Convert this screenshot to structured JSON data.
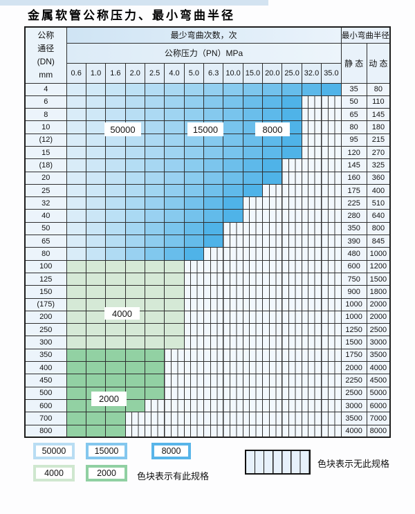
{
  "page": {
    "title": "金属软管公称压力、最小弯曲半径"
  },
  "table": {
    "header": {
      "dn_lines": [
        "公称",
        "通径",
        "(DN)",
        "mm"
      ],
      "bend_cycles": "最少弯曲次数，次",
      "pressure": "公称压力（PN）MPa",
      "min_radius": "最小弯曲半径",
      "static_label": "静 态",
      "dynamic_label": "动 态",
      "pressure_columns": [
        "0.6",
        "1.0",
        "1.6",
        "2.0",
        "2.5",
        "4.0",
        "5.0",
        "6.3",
        "10.0",
        "15.0",
        "20.0",
        "25.0",
        "32.0",
        "35.0"
      ]
    },
    "rows": [
      {
        "dn": "4",
        "colored": 14,
        "zone": "blue",
        "static": "35",
        "dynamic": "80"
      },
      {
        "dn": "6",
        "colored": 12,
        "zone": "blue",
        "static": "50",
        "dynamic": "110"
      },
      {
        "dn": "8",
        "colored": 12,
        "zone": "blue",
        "static": "65",
        "dynamic": "145"
      },
      {
        "dn": "10",
        "colored": 12,
        "zone": "blue",
        "static": "80",
        "dynamic": "180"
      },
      {
        "dn": "(12)",
        "colored": 12,
        "zone": "blue",
        "static": "95",
        "dynamic": "215"
      },
      {
        "dn": "15",
        "colored": 12,
        "zone": "blue",
        "static": "120",
        "dynamic": "270"
      },
      {
        "dn": "(18)",
        "colored": 11,
        "zone": "blue",
        "static": "145",
        "dynamic": "325"
      },
      {
        "dn": "20",
        "colored": 11,
        "zone": "blue",
        "static": "160",
        "dynamic": "360"
      },
      {
        "dn": "25",
        "colored": 10,
        "zone": "blue",
        "static": "175",
        "dynamic": "400"
      },
      {
        "dn": "32",
        "colored": 9,
        "zone": "blue",
        "static": "225",
        "dynamic": "510"
      },
      {
        "dn": "40",
        "colored": 9,
        "zone": "blue",
        "static": "280",
        "dynamic": "640"
      },
      {
        "dn": "50",
        "colored": 8,
        "zone": "blue",
        "static": "350",
        "dynamic": "800"
      },
      {
        "dn": "65",
        "colored": 8,
        "zone": "blue",
        "static": "390",
        "dynamic": "845"
      },
      {
        "dn": "80",
        "colored": 7,
        "zone": "blue",
        "static": "480",
        "dynamic": "1000"
      },
      {
        "dn": "100",
        "colored": 6,
        "zone": "green-4000",
        "static": "600",
        "dynamic": "1200"
      },
      {
        "dn": "125",
        "colored": 6,
        "zone": "green-4000",
        "static": "750",
        "dynamic": "1500"
      },
      {
        "dn": "150",
        "colored": 6,
        "zone": "green-4000",
        "static": "900",
        "dynamic": "1800"
      },
      {
        "dn": "(175)",
        "colored": 6,
        "zone": "green-4000",
        "static": "1000",
        "dynamic": "2000"
      },
      {
        "dn": "200",
        "colored": 6,
        "zone": "green-4000",
        "static": "1000",
        "dynamic": "2000"
      },
      {
        "dn": "250",
        "colored": 6,
        "zone": "green-4000",
        "static": "1250",
        "dynamic": "2500"
      },
      {
        "dn": "300",
        "colored": 6,
        "zone": "green-4000",
        "static": "1500",
        "dynamic": "3000"
      },
      {
        "dn": "350",
        "colored": 5,
        "zone": "green-2000",
        "static": "1750",
        "dynamic": "3500"
      },
      {
        "dn": "400",
        "colored": 5,
        "zone": "green-2000",
        "static": "2000",
        "dynamic": "4000"
      },
      {
        "dn": "450",
        "colored": 5,
        "zone": "green-2000",
        "static": "2250",
        "dynamic": "4500"
      },
      {
        "dn": "500",
        "colored": 5,
        "zone": "green-2000",
        "static": "2500",
        "dynamic": "5000"
      },
      {
        "dn": "600",
        "colored": 4,
        "zone": "green-2000",
        "static": "3000",
        "dynamic": "6000"
      },
      {
        "dn": "700",
        "colored": 3,
        "zone": "green-2000",
        "static": "3500",
        "dynamic": "7000"
      },
      {
        "dn": "800",
        "colored": 3,
        "zone": "green-2000",
        "static": "4000",
        "dynamic": "8000"
      }
    ]
  },
  "overlays": [
    {
      "id": "label-50000",
      "text": "50000"
    },
    {
      "id": "label-15000",
      "text": "15000"
    },
    {
      "id": "label-8000",
      "text": "8000"
    },
    {
      "id": "label-4000",
      "text": "4000"
    },
    {
      "id": "label-2000",
      "text": "2000"
    }
  ],
  "legend": {
    "swatches": [
      {
        "label": "50000",
        "color": "#b9ddf3"
      },
      {
        "label": "15000",
        "color": "#84c7ee"
      },
      {
        "label": "8000",
        "color": "#58b5e9"
      },
      {
        "label": "4000",
        "color": "#cfe7cf"
      },
      {
        "label": "2000",
        "color": "#90d0a2"
      }
    ],
    "has_spec_text": "色块表示有此规格",
    "no_spec_text": "色块表示无此规格"
  },
  "colors": {
    "blue_gradient_start": "#d9ecf8",
    "blue_gradient_end": "#4fb3e8",
    "green_4000": "#d5e9d6",
    "green_2000": "#92d1a3",
    "hatch_stripe": "#f2f8fd",
    "top_strip": "#d3e3f1"
  }
}
